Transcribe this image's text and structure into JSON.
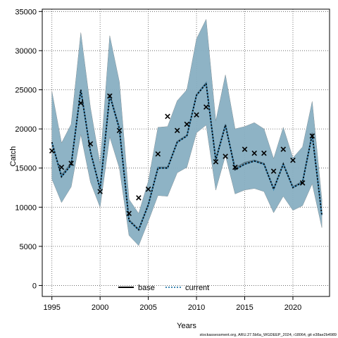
{
  "chart_data": {
    "type": "line",
    "xlabel": "Years",
    "ylabel": "Catch",
    "xlim": [
      1994.0,
      2023.8
    ],
    "ylim": [
      -1400,
      35300
    ],
    "x_ticks": [
      "1995",
      "2000",
      "2005",
      "2010",
      "2015",
      "2020"
    ],
    "y_ticks": [
      "0",
      "5000",
      "10000",
      "15000",
      "20000",
      "25000",
      "30000",
      "35000"
    ],
    "grid": true,
    "legend_position": "bottom-center",
    "footnote": "stockassessment.org, ARU.27.5b6a_WGDEEP_2024, r18064, git e38ae2b4989",
    "colors": {
      "base_band": "#8c8c8c",
      "current_band": "#87b5cc",
      "current_line": "#3f88b3",
      "base_line": "#000000",
      "observed": "#000000"
    },
    "years": [
      1995,
      1996,
      1997,
      1998,
      1999,
      2000,
      2001,
      2002,
      2003,
      2004,
      2005,
      2006,
      2007,
      2008,
      2009,
      2010,
      2011,
      2012,
      2013,
      2014,
      2015,
      2016,
      2017,
      2018,
      2019,
      2020,
      2021,
      2022,
      2023
    ],
    "series": [
      {
        "name": "base",
        "line_style": "solid",
        "values": [
          18300,
          14100,
          15600,
          25000,
          17200,
          12400,
          24500,
          20200,
          8400,
          7200,
          10400,
          15100,
          15100,
          18400,
          19200,
          24400,
          25900,
          16200,
          20600,
          15000,
          15700,
          16000,
          15600,
          12400,
          15600,
          12600,
          13300,
          19500,
          9000
        ],
        "lower": [
          13600,
          10600,
          12600,
          19300,
          13200,
          10000,
          19000,
          15000,
          6400,
          5100,
          8200,
          11500,
          11400,
          14400,
          15100,
          19500,
          20500,
          12200,
          16600,
          11700,
          12200,
          12400,
          12000,
          9300,
          11400,
          9600,
          10200,
          13000,
          7400
        ],
        "upper": [
          24800,
          18200,
          20600,
          32300,
          22700,
          15500,
          31900,
          26000,
          11000,
          9200,
          13300,
          20200,
          20300,
          23600,
          25000,
          31500,
          34000,
          21000,
          26900,
          20000,
          20300,
          20800,
          20000,
          16200,
          20200,
          16300,
          17700,
          23500,
          11000
        ]
      },
      {
        "name": "current",
        "line_style": "dotted",
        "values": [
          18300,
          13900,
          15400,
          25000,
          17100,
          12300,
          24300,
          20000,
          8300,
          7100,
          10300,
          15000,
          15000,
          18300,
          19100,
          24300,
          25800,
          16000,
          20500,
          14800,
          15500,
          15900,
          15500,
          12300,
          15500,
          12500,
          13200,
          19300,
          9000
        ],
        "lower": [
          13600,
          10600,
          12600,
          19300,
          13200,
          10000,
          19000,
          15000,
          6400,
          5100,
          8200,
          11500,
          11400,
          14400,
          15100,
          19500,
          20500,
          12200,
          16600,
          11700,
          12200,
          12400,
          12000,
          9300,
          11400,
          9600,
          10200,
          13000,
          7400
        ],
        "upper": [
          24800,
          18200,
          20600,
          32300,
          22700,
          15500,
          31900,
          26000,
          11000,
          9200,
          13300,
          20200,
          20300,
          23600,
          25000,
          31500,
          34000,
          21000,
          26900,
          20000,
          20300,
          20800,
          20000,
          16200,
          20200,
          16300,
          17700,
          23500,
          11000
        ]
      }
    ],
    "observed": {
      "marker": "x",
      "years": [
        1995,
        1996,
        1997,
        1998,
        1999,
        2000,
        2001,
        2002,
        2003,
        2004,
        2005,
        2006,
        2007,
        2008,
        2009,
        2010,
        2011,
        2012,
        2013,
        2014,
        2015,
        2016,
        2017,
        2018,
        2019,
        2020,
        2021,
        2022
      ],
      "values": [
        17200,
        15100,
        15600,
        23300,
        18100,
        12000,
        24200,
        19800,
        9200,
        11200,
        12300,
        16800,
        21600,
        19800,
        20600,
        21800,
        22800,
        15800,
        16500,
        15100,
        17400,
        16900,
        16900,
        14600,
        17400,
        16000,
        13100,
        19100
      ]
    }
  }
}
